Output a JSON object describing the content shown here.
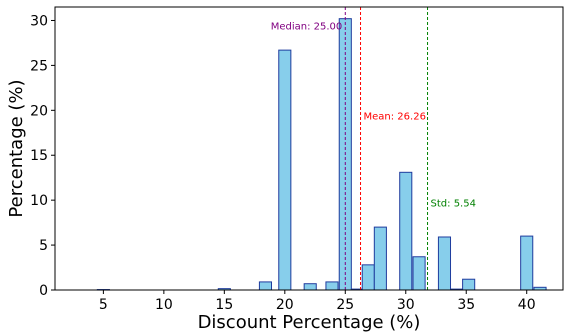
{
  "chart_data": {
    "type": "bar",
    "subtype": "histogram",
    "xlabel": "Discount Percentage (%)",
    "ylabel": "Percentage (%)",
    "xlim": [
      1,
      43
    ],
    "ylim": [
      0,
      31.5
    ],
    "xticks": [
      5,
      10,
      15,
      20,
      25,
      30,
      35,
      40
    ],
    "yticks": [
      0,
      5,
      10,
      15,
      20,
      25,
      30
    ],
    "grid": false,
    "bar_width": 1,
    "bar_color": "#87ceeb",
    "bar_edge_color": "#1f3c9e",
    "bins": [
      {
        "x": 5,
        "value": 0.05
      },
      {
        "x": 15,
        "value": 0.15
      },
      {
        "x": 18.4,
        "value": 0.9
      },
      {
        "x": 20,
        "value": 26.7
      },
      {
        "x": 22.1,
        "value": 0.7
      },
      {
        "x": 23.9,
        "value": 0.9
      },
      {
        "x": 25,
        "value": 30.2
      },
      {
        "x": 26,
        "value": 0.1
      },
      {
        "x": 26.9,
        "value": 2.8
      },
      {
        "x": 27.9,
        "value": 7.0
      },
      {
        "x": 30,
        "value": 13.1
      },
      {
        "x": 31.1,
        "value": 3.7
      },
      {
        "x": 33.2,
        "value": 5.9
      },
      {
        "x": 34.2,
        "value": 0.1
      },
      {
        "x": 35.2,
        "value": 1.2
      },
      {
        "x": 40,
        "value": 6.0
      },
      {
        "x": 41.1,
        "value": 0.3
      }
    ],
    "reference_lines": [
      {
        "label": "Median: 25.00",
        "x": 25.0,
        "color": "#800080",
        "label_anchor": "end",
        "label_y": 29.0
      },
      {
        "label": "Mean: 26.26",
        "x": 26.26,
        "color": "#ff0000",
        "label_anchor": "start",
        "label_y": 19.0
      },
      {
        "label": "Std: 5.54",
        "x": 31.8,
        "color": "#008000",
        "label_anchor": "start",
        "label_y": 9.3
      }
    ]
  }
}
